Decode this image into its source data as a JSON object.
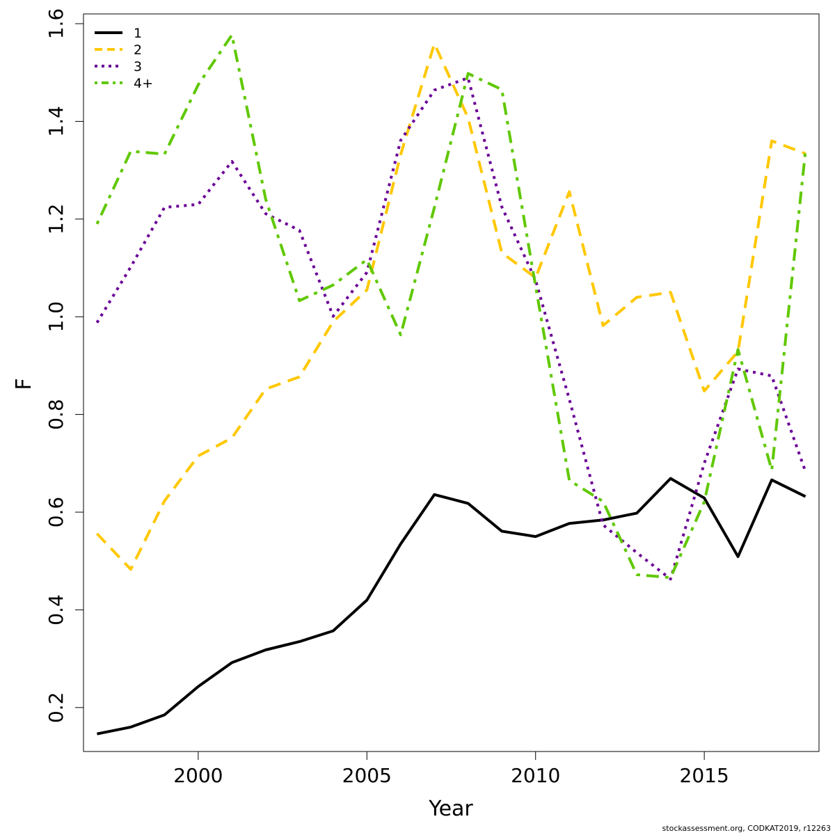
{
  "chart_data": {
    "type": "line",
    "xlabel": "Year",
    "ylabel": "F",
    "xlim": [
      1996.6,
      2018.4
    ],
    "ylim": [
      0.11,
      1.62
    ],
    "x_ticks": [
      2000,
      2005,
      2010,
      2015
    ],
    "y_ticks": [
      0.2,
      0.4,
      0.6,
      0.8,
      1.0,
      1.2,
      1.4,
      1.6
    ],
    "x_tick_labels": [
      "2000",
      "2005",
      "2010",
      "2015"
    ],
    "y_tick_labels": [
      "0.2",
      "0.4",
      "0.6",
      "0.8",
      "1.0",
      "1.2",
      "1.4",
      "1.6"
    ],
    "legend_position": "top-left",
    "grid": false,
    "x": [
      1997,
      1998,
      1999,
      2000,
      2001,
      2002,
      2003,
      2004,
      2005,
      2006,
      2007,
      2008,
      2009,
      2010,
      2011,
      2012,
      2013,
      2014,
      2015,
      2016,
      2017,
      2018
    ],
    "series": [
      {
        "name": "1",
        "color": "#000000",
        "dash": "solid",
        "values": [
          0.146,
          0.16,
          0.185,
          0.243,
          0.292,
          0.318,
          0.335,
          0.357,
          0.42,
          0.535,
          0.636,
          0.618,
          0.561,
          0.55,
          0.577,
          0.584,
          0.598,
          0.669,
          0.629,
          0.509,
          0.666,
          0.632
        ]
      },
      {
        "name": "2",
        "color": "#FFC800",
        "dash": "dashed",
        "values": [
          0.556,
          0.483,
          0.623,
          0.715,
          0.752,
          0.852,
          0.877,
          0.99,
          1.055,
          1.332,
          1.559,
          1.407,
          1.131,
          1.08,
          1.256,
          0.982,
          1.04,
          1.05,
          0.848,
          0.929,
          1.36,
          1.334
        ]
      },
      {
        "name": "3",
        "color": "#6A0096",
        "dash": "dotted",
        "values": [
          0.988,
          1.102,
          1.224,
          1.23,
          1.318,
          1.211,
          1.177,
          1.001,
          1.091,
          1.361,
          1.464,
          1.489,
          1.225,
          1.075,
          0.831,
          0.574,
          0.517,
          0.463,
          0.7,
          0.893,
          0.879,
          0.683
        ]
      },
      {
        "name": "4+",
        "color": "#60C800",
        "dash": "dashdot",
        "values": [
          1.19,
          1.339,
          1.333,
          1.475,
          1.577,
          1.241,
          1.033,
          1.065,
          1.117,
          0.963,
          1.224,
          1.498,
          1.465,
          1.063,
          0.665,
          0.622,
          0.472,
          0.466,
          0.621,
          0.933,
          0.686,
          1.34
        ]
      }
    ]
  },
  "footer": {
    "note": "stockassessment.org, CODKAT2019, r12263"
  }
}
